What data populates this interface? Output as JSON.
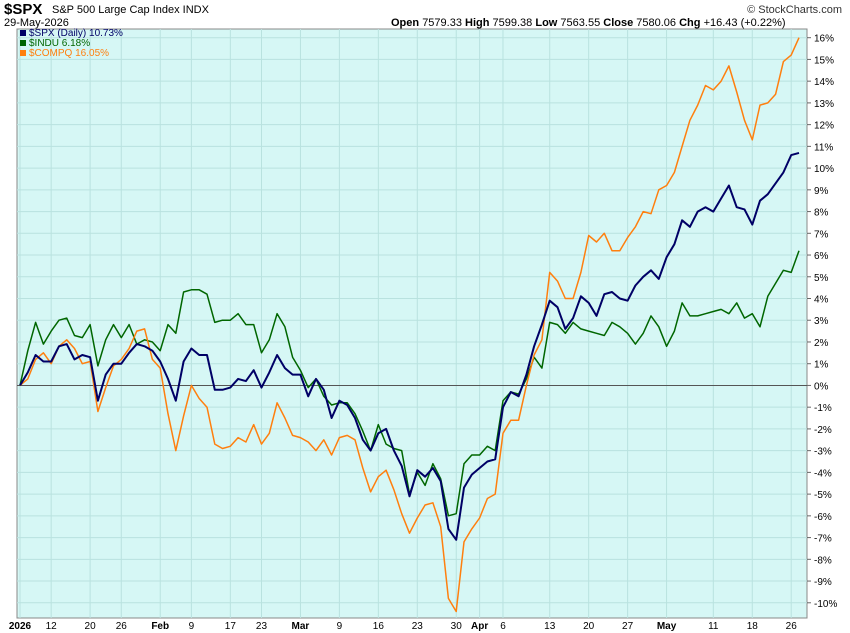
{
  "header": {
    "symbol": "$SPX",
    "description": "S&P 500 Large Cap Index INDX",
    "date": "29-May-2026",
    "credit": "© StockCharts.com",
    "open_label": "Open",
    "open": "7579.33",
    "high_label": "High",
    "high": "7599.38",
    "low_label": "Low",
    "low": "7563.55",
    "close_label": "Close",
    "close": "7580.06",
    "chg_label": "Chg",
    "chg": "+16.43 (+0.22%)"
  },
  "colors": {
    "background": "#d6f7f5",
    "grid": "#b9e2df",
    "zero_line": "#555555",
    "spx": "#000066",
    "indu": "#006600",
    "compq": "#ff7f0e"
  },
  "chart_data": {
    "type": "line",
    "x_tick_labels": [
      "2026",
      "12",
      "20",
      "26",
      "Feb",
      "9",
      "17",
      "23",
      "Mar",
      "9",
      "16",
      "23",
      "30",
      "Apr",
      "6",
      "13",
      "20",
      "27",
      "May",
      "11",
      "18",
      "26"
    ],
    "y_ticks": [
      16,
      15,
      14,
      13,
      12,
      11,
      10,
      9,
      8,
      7,
      6,
      5,
      4,
      3,
      2,
      1,
      0,
      -1,
      -2,
      -3,
      -4,
      -5,
      -6,
      -7,
      -8,
      -9,
      -10
    ],
    "y_unit": "%",
    "ylim": [
      -10.7,
      16.4
    ],
    "legend_position": "top-left",
    "series": [
      {
        "name": "$SPX (Daily) 10.73%",
        "color_key": "spx",
        "values": [
          0,
          0.6,
          1.4,
          1.1,
          1.1,
          1.8,
          1.9,
          1.2,
          1.4,
          1.3,
          -0.7,
          0.5,
          1.0,
          1.0,
          1.5,
          1.9,
          1.8,
          1.6,
          1.1,
          0.3,
          -0.7,
          1.1,
          1.7,
          1.4,
          1.4,
          -0.2,
          -0.2,
          -0.1,
          0.3,
          0.2,
          0.7,
          -0.1,
          0.6,
          1.4,
          0.8,
          0.5,
          0.5,
          -0.5,
          0.3,
          -0.2,
          -1.5,
          -0.7,
          -0.9,
          -1.5,
          -2.5,
          -3.0,
          -2.2,
          -2.0,
          -3.0,
          -3.7,
          -5.1,
          -3.9,
          -4.2,
          -3.8,
          -4.4,
          -6.6,
          -7.1,
          -4.7,
          -4.1,
          -3.8,
          -3.5,
          -3.4,
          -1.0,
          -0.3,
          -0.5,
          0.5,
          1.8,
          2.8,
          3.9,
          3.6,
          2.6,
          3.1,
          4.1,
          3.8,
          3.2,
          4.2,
          4.3,
          4.0,
          3.9,
          4.6,
          5.0,
          5.3,
          4.9,
          5.9,
          6.5,
          7.6,
          7.3,
          8.0,
          8.2,
          8.0,
          8.6,
          9.2,
          8.2,
          8.1,
          7.4,
          8.5,
          8.8,
          9.3,
          9.8,
          10.6,
          10.7
        ]
      },
      {
        "name": "$INDU 6.18%",
        "color_key": "indu",
        "values": [
          0,
          1.6,
          2.9,
          1.9,
          2.5,
          3.0,
          3.1,
          2.3,
          2.2,
          2.8,
          0.9,
          2.1,
          2.8,
          2.2,
          2.8,
          1.9,
          2.1,
          2.0,
          1.6,
          2.8,
          2.4,
          4.3,
          4.4,
          4.4,
          4.2,
          2.9,
          3.0,
          3.0,
          3.3,
          2.8,
          2.8,
          1.5,
          2.1,
          3.3,
          2.7,
          1.3,
          0.7,
          -0.1,
          0.3,
          -0.5,
          -0.9,
          -0.8,
          -0.8,
          -1.3,
          -2.1,
          -3.0,
          -1.8,
          -2.7,
          -2.9,
          -3.0,
          -5.0,
          -4.0,
          -4.6,
          -3.6,
          -4.3,
          -6.0,
          -5.9,
          -3.6,
          -3.2,
          -3.2,
          -2.8,
          -3.0,
          -0.7,
          -0.3,
          -0.4,
          0.3,
          1.3,
          0.8,
          2.9,
          2.8,
          2.4,
          2.9,
          2.6,
          2.5,
          2.4,
          2.3,
          2.9,
          2.7,
          2.4,
          1.9,
          2.4,
          3.2,
          2.7,
          1.8,
          2.5,
          3.8,
          3.2,
          3.2,
          3.3,
          3.4,
          3.5,
          3.3,
          3.8,
          3.1,
          3.3,
          2.7,
          4.1,
          4.7,
          5.3,
          5.2,
          6.2
        ]
      },
      {
        "name": "$COMPQ 16.05%",
        "color_key": "compq",
        "values": [
          0,
          0.3,
          1.2,
          1.5,
          1.0,
          1.8,
          2.1,
          1.7,
          1.0,
          1.1,
          -1.2,
          -0.1,
          0.9,
          1.2,
          1.7,
          2.5,
          2.6,
          1.2,
          0.8,
          -1.3,
          -3.0,
          -1.4,
          0,
          -0.6,
          -1.0,
          -2.7,
          -2.9,
          -2.8,
          -2.4,
          -2.6,
          -1.8,
          -2.7,
          -2.2,
          -0.8,
          -1.5,
          -2.3,
          -2.4,
          -2.6,
          -3.0,
          -2.5,
          -3.2,
          -2.4,
          -2.3,
          -2.5,
          -3.8,
          -4.9,
          -4.2,
          -3.9,
          -4.8,
          -5.9,
          -6.8,
          -6.1,
          -5.5,
          -5.4,
          -6.5,
          -9.8,
          -10.4,
          -7.2,
          -6.6,
          -6.1,
          -5.2,
          -5.0,
          -2.2,
          -1.6,
          -1.6,
          0,
          1.4,
          2.1,
          5.2,
          4.8,
          4.0,
          4.0,
          5.2,
          6.9,
          6.6,
          7.0,
          6.2,
          6.2,
          6.8,
          7.3,
          8.0,
          7.9,
          9.0,
          9.2,
          9.8,
          11.0,
          12.2,
          12.9,
          13.8,
          13.6,
          14.0,
          14.7,
          13.5,
          12.2,
          11.3,
          12.9,
          13.0,
          13.4,
          14.9,
          15.2,
          16.0
        ]
      }
    ]
  }
}
